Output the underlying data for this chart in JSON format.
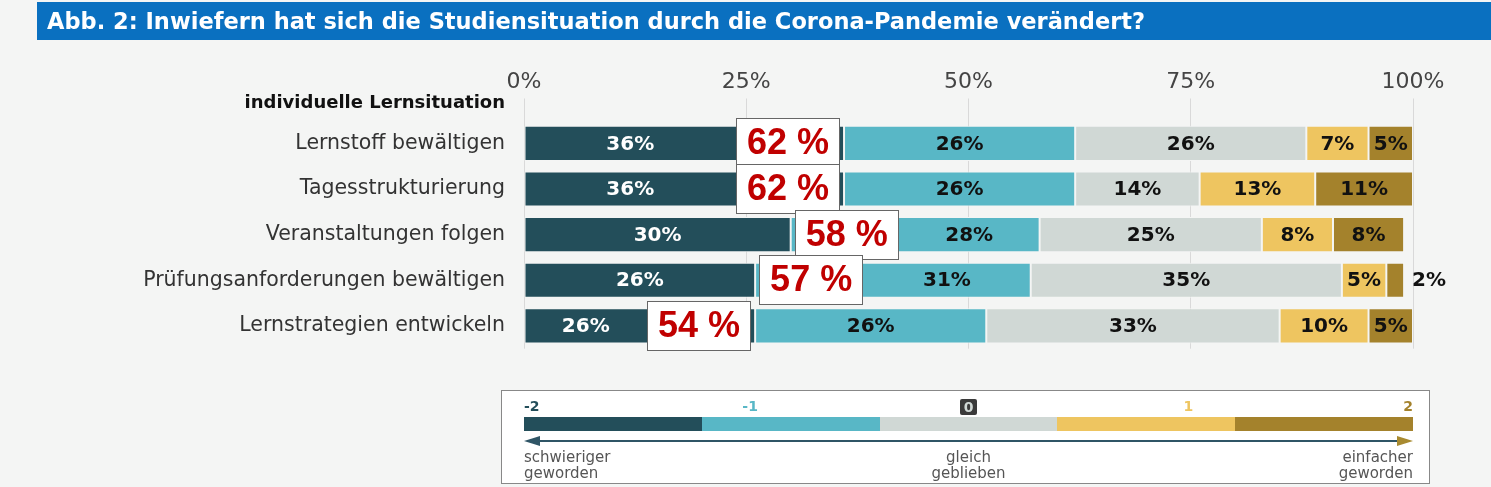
{
  "chart_data": {
    "type": "bar",
    "orientation": "horizontal",
    "stacked": true,
    "title": "Abb. 2: Inwiefern hat sich die Studiensituation durch die Corona-Pandemie verändert?",
    "categories": [
      "Lernstoff bewältigen",
      "Tagesstrukturierung",
      "Veranstaltungen folgen",
      "Prüfungsanforderungen bewältigen",
      "Lernstrategien entwickeln"
    ],
    "series": [
      {
        "name": "-2",
        "color": "#234e5a",
        "values": [
          36,
          36,
          30,
          26,
          26
        ],
        "value_labels": [
          "36%",
          "36%",
          "30%",
          "26%",
          "26%"
        ]
      },
      {
        "name": "-1",
        "color": "#58b7c6",
        "values": [
          26,
          26,
          28,
          31,
          26
        ],
        "value_labels": [
          "26%",
          "26%",
          "28%",
          "31%",
          "26%"
        ]
      },
      {
        "name": "0",
        "color": "#d0d8d5",
        "values": [
          26,
          14,
          25,
          35,
          33
        ],
        "value_labels": [
          "26%",
          "14%",
          "25%",
          "35%",
          "33%"
        ]
      },
      {
        "name": "1",
        "color": "#eec560",
        "values": [
          7,
          13,
          8,
          5,
          10
        ],
        "value_labels": [
          "7%",
          "13%",
          "8%",
          "5%",
          "10%"
        ]
      },
      {
        "name": "2",
        "color": "#a4822c",
        "values": [
          5,
          11,
          8,
          2,
          5
        ],
        "value_labels": [
          "5%",
          "11%",
          "8%",
          "2%",
          "5%"
        ]
      }
    ],
    "xlim": [
      0,
      100
    ],
    "xticks": [
      {
        "value": 0,
        "label": "0%"
      },
      {
        "value": 25,
        "label": "25%"
      },
      {
        "value": 50,
        "label": "50%"
      },
      {
        "value": 75,
        "label": "75%"
      },
      {
        "value": 100,
        "label": "100%"
      }
    ],
    "grid": "x",
    "legend": "bottom",
    "annotations": [
      "individuelle Lernsituation",
      {
        "text": "62 %",
        "x": 35,
        "y": "Lernstoff bewältigen"
      },
      {
        "text": "62 %",
        "x": 35,
        "y": "Tagesstrukturierung"
      },
      {
        "text": "58 %",
        "x": 31,
        "y": "Veranstaltungen folgen"
      },
      {
        "text": "57 %",
        "x": 28,
        "y": "Prüfungsanforderungen bewältigen"
      },
      {
        "text": "54 %",
        "x": 23,
        "y": "Lernstrategien entwickeln"
      },
      "schwieriger geworden",
      "gleich geblieben",
      "einfacher geworden"
    ]
  }
}
